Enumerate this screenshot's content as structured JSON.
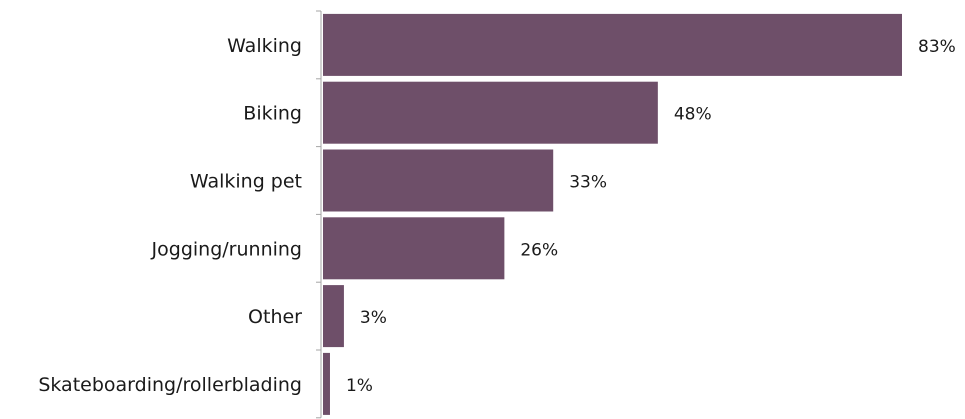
{
  "chart_data": {
    "type": "bar",
    "orientation": "horizontal",
    "categories": [
      "Walking",
      "Biking",
      "Walking pet",
      "Jogging/running",
      "Other",
      "Skateboarding/rollerblading"
    ],
    "values": [
      83,
      48,
      33,
      26,
      3,
      1
    ],
    "value_labels": [
      "83%",
      "48%",
      "33%",
      "26%",
      "3%",
      "1%"
    ],
    "xlim": [
      0,
      83
    ],
    "grid": false,
    "legend": "none",
    "colors": {
      "bar": "#6e4f69",
      "axis": "#a6a6a6",
      "text": "#1a1a1a"
    }
  }
}
